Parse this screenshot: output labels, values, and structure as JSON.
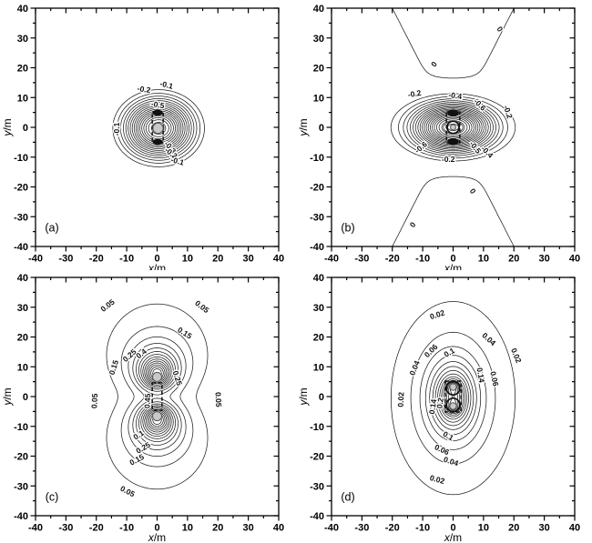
{
  "figure": {
    "background": "#ffffff",
    "line_color": "#1c1c1c",
    "frame_color": "#000000",
    "label_color": "#111111"
  },
  "chart_data": {
    "type": "contour",
    "grid": false,
    "axis": {
      "xlim": [
        -40,
        40
      ],
      "ylim": [
        -40,
        40
      ],
      "major_step": 10,
      "minor_step": 5,
      "tick_labels": [
        "-40",
        "-30",
        "-20",
        "-10",
        "0",
        "10",
        "20",
        "30",
        "40"
      ],
      "xlabel_var": "x",
      "xlabel_unit": "/m",
      "ylabel_var": "y",
      "ylabel_unit": "/m"
    },
    "panels": [
      {
        "id": "a",
        "label": "(a)",
        "labeled_levels": [
          "-0.1",
          "-0.2",
          "-0.3",
          "-0.5"
        ],
        "field": {
          "terms": [
            {
              "type": "gauss",
              "A": -0.95,
              "x0": 0.5,
              "y0": -0.3,
              "sx": 7.1,
              "sy": 6.1
            }
          ]
        },
        "levels": [
          -0.94,
          -0.92,
          -0.9,
          -0.85,
          -0.8,
          -0.75,
          -0.7,
          -0.65,
          -0.6,
          -0.55,
          -0.5,
          -0.45,
          -0.4,
          -0.35,
          -0.3,
          -0.25,
          -0.2,
          -0.15,
          -0.1
        ],
        "contour_labels": [
          {
            "t": "-0.1",
            "x": 3.1,
            "y": 14.3,
            "r": -14
          },
          {
            "t": "-0.2",
            "x": -4.3,
            "y": 12.8,
            "r": -8
          },
          {
            "t": "-0.5",
            "x": 0.2,
            "y": 7.6,
            "r": -10
          },
          {
            "t": "-0.1",
            "x": -13.3,
            "y": -0.6,
            "r": 90
          },
          {
            "t": "-0.3",
            "x": 4.3,
            "y": -6.7,
            "r": -50
          },
          {
            "t": "-0.2",
            "x": 4.6,
            "y": -8.6,
            "r": -38
          },
          {
            "t": "-0.1",
            "x": 6.7,
            "y": -11.3,
            "r": -15
          }
        ],
        "markers": [
          {
            "type": "dashed_rect",
            "x0": -1.6,
            "x1": 2.0,
            "y0": -5.2,
            "y1": 5.2
          },
          {
            "type": "bold_ellipse",
            "x": 0.2,
            "y": 4.9,
            "rx": 1.5,
            "ry": 0.85
          },
          {
            "type": "bold_ellipse",
            "x": 0.2,
            "y": -4.9,
            "rx": 1.5,
            "ry": 0.85
          },
          {
            "type": "gray_circle",
            "x": 0.3,
            "y": -0.3,
            "rr": 1.7
          }
        ]
      },
      {
        "id": "b",
        "label": "(b)",
        "labeled_levels": [
          "0",
          "-0.2",
          "-0.4",
          "-0.5",
          "-0.6"
        ],
        "field": {
          "terms": [
            {
              "type": "gauss",
              "A": -2.2,
              "x0": 0,
              "y0": 0,
              "sx": 8.5,
              "sy": 5.2
            },
            {
              "type": "saddle",
              "c": 6.84e-05,
              "m": 4,
              "r2": 900
            }
          ]
        },
        "levels": [
          -2.15,
          -2.05,
          -2.0,
          -1.9,
          -1.8,
          -1.7,
          -1.6,
          -1.5,
          -1.4,
          -1.3,
          -1.2,
          -1.1,
          -1.0,
          -0.9,
          -0.8,
          -0.7,
          -0.6,
          -0.5,
          -0.4,
          -0.3,
          -0.2,
          0
        ],
        "contour_labels": [
          {
            "t": "-0.2",
            "x": -12.7,
            "y": 11.3,
            "r": 10
          },
          {
            "t": "-0.4",
            "x": 0.7,
            "y": 10.7,
            "r": -8
          },
          {
            "t": "-0.6",
            "x": 8.8,
            "y": 7.6,
            "r": -45
          },
          {
            "t": "-0.2",
            "x": 18.1,
            "y": 5.2,
            "r": -72
          },
          {
            "t": "-0.6",
            "x": -10.6,
            "y": -6.7,
            "r": 40
          },
          {
            "t": "-0.5",
            "x": 7.3,
            "y": -6.7,
            "r": -52
          },
          {
            "t": "-0.4",
            "x": 11.2,
            "y": -8.2,
            "r": -45
          },
          {
            "t": "-0.2",
            "x": -1.6,
            "y": -10.7,
            "r": 0
          },
          {
            "t": "0",
            "x": -6.3,
            "y": 21.2,
            "r": 52
          },
          {
            "t": "0",
            "x": 15.4,
            "y": 33.0,
            "r": -55
          },
          {
            "t": "0",
            "x": 6.5,
            "y": -21.4,
            "r": -55
          },
          {
            "t": "0",
            "x": -13.3,
            "y": -32.7,
            "r": 52
          }
        ],
        "markers": [
          {
            "type": "dashed_rect",
            "x0": -2.2,
            "x1": 2.2,
            "y0": -5.2,
            "y1": 5.2
          },
          {
            "type": "bold_ellipse",
            "x": 0,
            "y": 4.8,
            "rx": 1.7,
            "ry": 0.95
          },
          {
            "type": "bold_ellipse",
            "x": 0,
            "y": -4.8,
            "rx": 1.7,
            "ry": 0.95
          },
          {
            "type": "bold_ring",
            "x": 0,
            "y": 0,
            "rr": 2.0
          },
          {
            "type": "gray_circle",
            "x": 0,
            "y": 0,
            "rr": 0.9
          }
        ]
      },
      {
        "id": "c",
        "label": "(c)",
        "labeled_levels": [
          "0.05",
          "0.1",
          "0.15",
          "0.25",
          "0.4",
          "0.45"
        ],
        "field": {
          "terms": [
            {
              "type": "lobe",
              "A": 1.0,
              "x0": 0,
              "y0": 6.8,
              "s2": 36,
              "p": 1.15,
              "xs": 0.95
            },
            {
              "type": "lobe",
              "A": 1.0,
              "x0": 0,
              "y0": -6.8,
              "s2": 36,
              "p": 1.15,
              "xs": 0.95
            }
          ],
          "mod": {
            "floor": 0.25,
            "amp": 0.75,
            "d": 40
          }
        },
        "levels": [
          0.05,
          0.1,
          0.15,
          0.2,
          0.25,
          0.3,
          0.35,
          0.4,
          0.45,
          0.5,
          0.55,
          0.6,
          0.65,
          0.7
        ],
        "contour_labels": [
          {
            "t": "0.05",
            "x": -16.3,
            "y": 30.6,
            "r": 38
          },
          {
            "t": "0.05",
            "x": 14.8,
            "y": 30.2,
            "r": -38
          },
          {
            "t": "0.15",
            "x": 9.1,
            "y": 21.4,
            "r": -32
          },
          {
            "t": "0.25",
            "x": -9.1,
            "y": 13.8,
            "r": 42
          },
          {
            "t": "0.4",
            "x": -5.2,
            "y": 14.4,
            "r": 38
          },
          {
            "t": "0.15",
            "x": -14.3,
            "y": 9.8,
            "r": 72
          },
          {
            "t": "0.25",
            "x": 6.7,
            "y": 6.2,
            "r": -72
          },
          {
            "t": "0.05",
            "x": 20.2,
            "y": -1.0,
            "r": -87
          },
          {
            "t": "0.05",
            "x": -20.6,
            "y": -1.5,
            "r": 87
          },
          {
            "t": "0.45",
            "x": -3.2,
            "y": -1.5,
            "r": 87
          },
          {
            "t": "0.1",
            "x": -6.1,
            "y": -12.9,
            "r": 33
          },
          {
            "t": "0.25",
            "x": -4.6,
            "y": -17.2,
            "r": 30
          },
          {
            "t": "0.15",
            "x": -6.7,
            "y": -21.2,
            "r": 28
          },
          {
            "t": "0.05",
            "x": -9.7,
            "y": -31.8,
            "r": -28
          }
        ],
        "markers": [
          {
            "type": "dashed_rect",
            "x0": -1.6,
            "x1": 1.6,
            "y0": -4.6,
            "y1": 4.6
          },
          {
            "type": "gray_circle",
            "x": 0,
            "y": 6.6,
            "rr": 1.5
          },
          {
            "type": "gray_circle",
            "x": 0,
            "y": -6.6,
            "rr": 1.5
          }
        ]
      },
      {
        "id": "d",
        "label": "(d)",
        "labeled_levels": [
          "0.02",
          "0.04",
          "0.06",
          "0.1",
          "0.14",
          "0.2"
        ],
        "field": {
          "terms": [
            {
              "type": "lobe",
              "A": 0.3,
              "x0": 0,
              "y0": -0.5,
              "s2": 75,
              "p": 1,
              "xs": 0.63
            },
            {
              "type": "bump",
              "A": 0.07,
              "x0": 0,
              "y0": 3.3,
              "s2": 3
            },
            {
              "type": "bump",
              "A": 0.07,
              "x0": 0,
              "y0": -3.8,
              "s2": 3
            }
          ]
        },
        "levels": [
          0.02,
          0.04,
          0.06,
          0.08,
          0.1,
          0.12,
          0.14,
          0.16,
          0.18,
          0.2,
          0.22,
          0.24,
          0.26,
          0.28,
          0.3,
          0.32
        ],
        "contour_labels": [
          {
            "t": "0.02",
            "x": -5.2,
            "y": 27.5,
            "r": 18
          },
          {
            "t": "0.04",
            "x": 11.8,
            "y": 19.3,
            "r": -42
          },
          {
            "t": "0.02",
            "x": 20.8,
            "y": 13.8,
            "r": -68
          },
          {
            "t": "0.06",
            "x": -7.3,
            "y": 15.4,
            "r": 45
          },
          {
            "t": "0.1",
            "x": -1.3,
            "y": 14.8,
            "r": 30
          },
          {
            "t": "0.04",
            "x": -12.7,
            "y": 9.6,
            "r": 68
          },
          {
            "t": "0.02",
            "x": -17.2,
            "y": -1.0,
            "r": 87
          },
          {
            "t": "0.14",
            "x": 9.1,
            "y": 7.2,
            "r": -80
          },
          {
            "t": "0.06",
            "x": 13.6,
            "y": 6.0,
            "r": -78
          },
          {
            "t": "0.14",
            "x": -6.7,
            "y": -3.4,
            "r": 82
          },
          {
            "t": "0.2",
            "x": -4.3,
            "y": -2.2,
            "r": 82
          },
          {
            "t": "0.1",
            "x": -1.6,
            "y": -13.2,
            "r": -30
          },
          {
            "t": "0.06",
            "x": -3.7,
            "y": -17.8,
            "r": -25
          },
          {
            "t": "0.04",
            "x": -0.7,
            "y": -21.7,
            "r": -18
          },
          {
            "t": "0.02",
            "x": -5.2,
            "y": -27.8,
            "r": -15
          }
        ],
        "markers": [
          {
            "type": "dashed_rect",
            "x0": -2.6,
            "x1": 2.6,
            "y0": -5.2,
            "y1": 5.2
          },
          {
            "type": "bold_ring",
            "x": 0,
            "y": 2.8,
            "rr": 2.2
          },
          {
            "type": "bold_ring",
            "x": 0,
            "y": -2.8,
            "rr": 2.2
          },
          {
            "type": "gray_circle",
            "x": 0,
            "y": 3.2,
            "rr": 1.1
          },
          {
            "type": "gray_circle",
            "x": 0,
            "y": -3.2,
            "rr": 1.1
          }
        ]
      }
    ]
  }
}
